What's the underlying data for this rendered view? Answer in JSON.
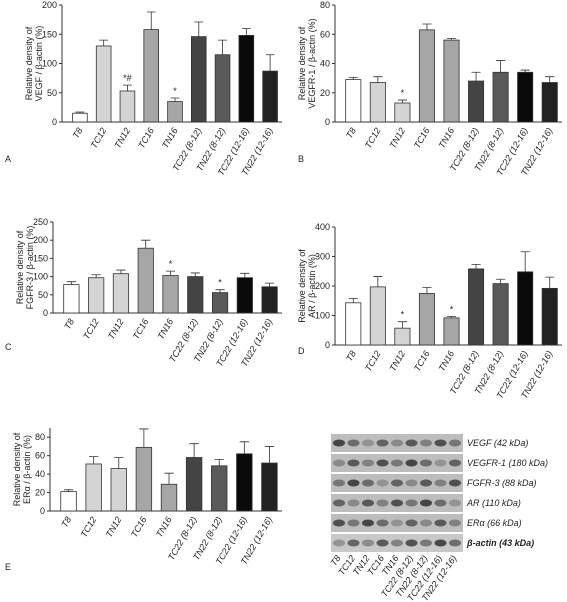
{
  "chart_data": [
    {
      "type": "bar",
      "panel": "A",
      "ylabel": [
        "Relative density of",
        "VEGF / β-actin (%)"
      ],
      "categories": [
        "T8",
        "TC12",
        "TN12",
        "TC16",
        "TN16",
        "TC22 (8-12)",
        "TN22 (8-12)",
        "TC22 (12-16)",
        "TN22 (12-16)"
      ],
      "values": [
        15,
        130,
        53,
        158,
        35,
        146,
        115,
        148,
        87
      ],
      "errors": [
        2,
        10,
        10,
        30,
        6,
        25,
        25,
        12,
        28
      ],
      "significance": [
        null,
        null,
        "*#",
        null,
        "*",
        null,
        null,
        null,
        null
      ],
      "colors": [
        "#ffffff",
        "#d4d4d4",
        "#d4d4d4",
        "#a6a6a6",
        "#a6a6a6",
        "#444444",
        "#5a5a5a",
        "#0a0a0a",
        "#222222"
      ],
      "ylim": [
        0,
        200
      ],
      "yticks": [
        0,
        50,
        100,
        150,
        200
      ]
    },
    {
      "type": "bar",
      "panel": "B",
      "ylabel": [
        "Relative density of",
        "VEGFR-1 / β-actin (%)"
      ],
      "categories": [
        "T8",
        "TC12",
        "TN12",
        "TC16",
        "TN16",
        "TC22 (8-12)",
        "TN22 (8-12)",
        "TC22 (12-16)",
        "TN22 (12-16)"
      ],
      "values": [
        29,
        27,
        13,
        63,
        56,
        28,
        34,
        34,
        27
      ],
      "errors": [
        1.5,
        4,
        2,
        4,
        1,
        6,
        8,
        1.5,
        4
      ],
      "significance": [
        null,
        null,
        "*",
        null,
        null,
        null,
        null,
        null,
        null
      ],
      "colors": [
        "#ffffff",
        "#d4d4d4",
        "#d4d4d4",
        "#a6a6a6",
        "#a6a6a6",
        "#444444",
        "#5a5a5a",
        "#0a0a0a",
        "#222222"
      ],
      "ylim": [
        0,
        80
      ],
      "yticks": [
        0,
        20,
        40,
        60,
        80
      ]
    },
    {
      "type": "bar",
      "panel": "C",
      "ylabel": [
        "Relative density of",
        "FGFR-3 / β-actin (%)"
      ],
      "categories": [
        "T8",
        "TC12",
        "TN12",
        "TC16",
        "TN16",
        "TC22 (8-12)",
        "TN22 (8-12)",
        "TC22 (12-16)",
        "TN22 (12-16)"
      ],
      "values": [
        78,
        97,
        108,
        178,
        103,
        100,
        56,
        97,
        72
      ],
      "errors": [
        8,
        8,
        10,
        22,
        12,
        10,
        8,
        12,
        10
      ],
      "significance": [
        null,
        null,
        null,
        null,
        "*",
        null,
        "*",
        null,
        null
      ],
      "colors": [
        "#ffffff",
        "#d4d4d4",
        "#d4d4d4",
        "#a6a6a6",
        "#a6a6a6",
        "#444444",
        "#5a5a5a",
        "#0a0a0a",
        "#222222"
      ],
      "ylim": [
        0,
        250
      ],
      "yticks": [
        0,
        50,
        100,
        150,
        200,
        250
      ]
    },
    {
      "type": "bar",
      "panel": "D",
      "ylabel": [
        "Relative density of",
        "AR / β-actin (%)"
      ],
      "categories": [
        "T8",
        "TC12",
        "TN12",
        "TC16",
        "TN16",
        "TC22 (8-12)",
        "TN22 (8-12)",
        "TC22 (12-16)",
        "TN22 (12-16)"
      ],
      "values": [
        143,
        197,
        57,
        175,
        92,
        258,
        208,
        248,
        192
      ],
      "errors": [
        15,
        35,
        22,
        20,
        5,
        15,
        15,
        68,
        38
      ],
      "significance": [
        null,
        null,
        "*",
        null,
        "*",
        null,
        null,
        null,
        null
      ],
      "colors": [
        "#ffffff",
        "#d4d4d4",
        "#d4d4d4",
        "#a6a6a6",
        "#a6a6a6",
        "#444444",
        "#5a5a5a",
        "#0a0a0a",
        "#222222"
      ],
      "ylim": [
        0,
        400
      ],
      "yticks": [
        0,
        100,
        200,
        300,
        400
      ]
    },
    {
      "type": "bar",
      "panel": "E",
      "ylabel": [
        "Relative density of",
        "ERα / β-actin (%)"
      ],
      "categories": [
        "T8",
        "TC12",
        "TN12",
        "TC16",
        "TN16",
        "TC22 (8-12)",
        "TN22 (8-12)",
        "TC22 (12-16)",
        "TN22 (12-16)"
      ],
      "values": [
        21,
        51,
        46,
        69,
        29,
        58,
        49,
        62,
        52
      ],
      "errors": [
        2,
        8,
        12,
        20,
        12,
        15,
        7,
        13,
        18
      ],
      "significance": [
        null,
        null,
        null,
        null,
        null,
        null,
        null,
        null,
        null
      ],
      "colors": [
        "#ffffff",
        "#d4d4d4",
        "#d4d4d4",
        "#a6a6a6",
        "#a6a6a6",
        "#444444",
        "#5a5a5a",
        "#0a0a0a",
        "#222222"
      ],
      "ylim": [
        0,
        90
      ],
      "yticks": [
        0,
        20,
        40,
        60,
        80
      ]
    }
  ],
  "blot": {
    "bands": [
      "VEGF (42 kDa)",
      "VEGFR-1 (180 kDa)",
      "FGFR-3 (88 kDa)",
      "AR (110 kDa)",
      "ERα (66 kDa)",
      "β-actin (43 kDa)"
    ],
    "lanes": [
      "T8",
      "TC12",
      "TN12",
      "TC16",
      "TN16",
      "TC22 (8-12)",
      "TN22 (8-12)",
      "TC22 (12-16)",
      "TN22 (12-16)"
    ]
  }
}
